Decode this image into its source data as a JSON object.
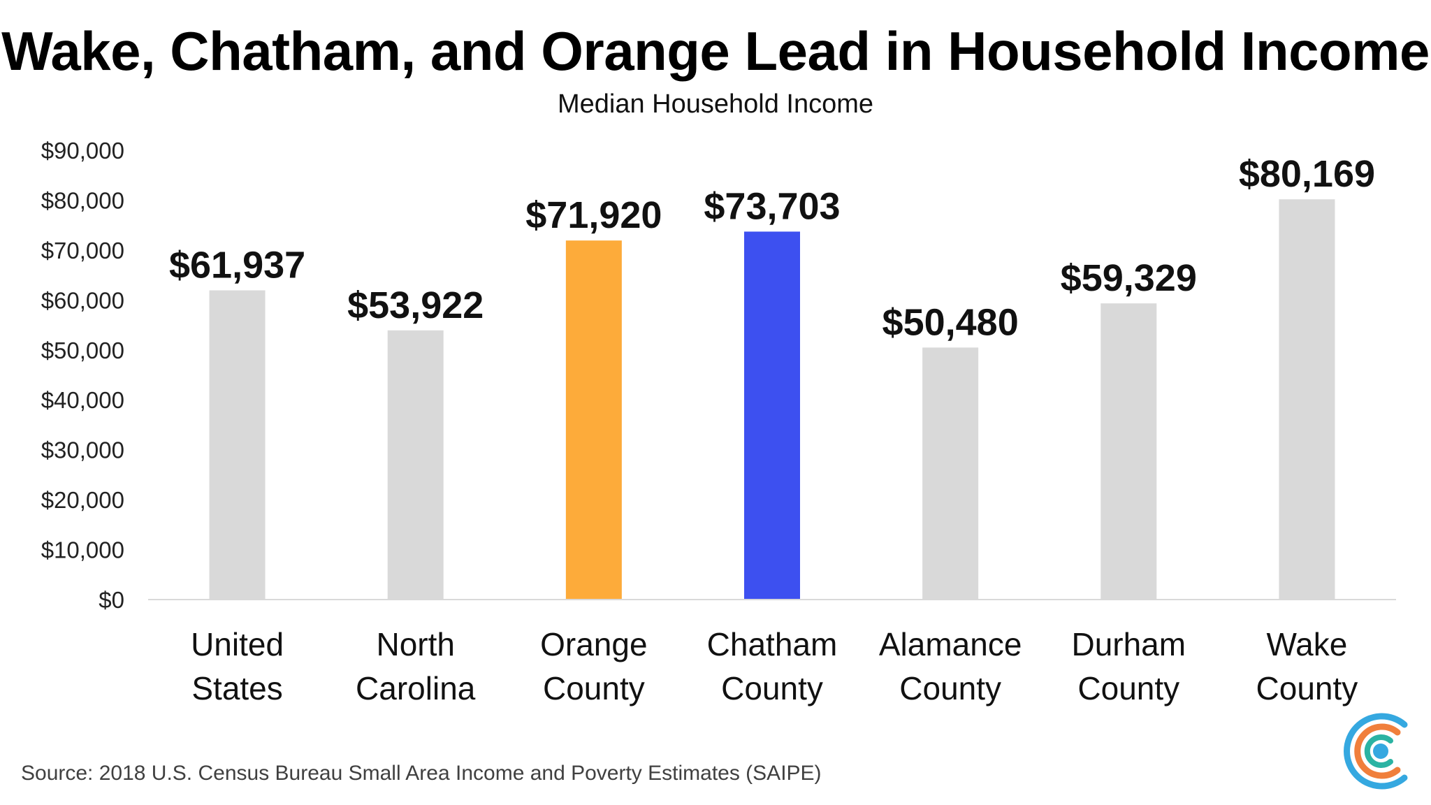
{
  "title": "Wake, Chatham, and Orange Lead in Household Income",
  "subtitle": "Median Household Income",
  "source": "Source: 2018 U.S. Census Bureau Small Area Income and Poverty Estimates (SAIPE)",
  "colors": {
    "default_bar": "#d9d9d9",
    "orange_bar": "#fdab3a",
    "blue_bar": "#3d50f0",
    "axis_line": "#d9d9d9",
    "logo_blue": "#35a8e0",
    "logo_orange": "#f07f3c",
    "logo_teal": "#2bb3a3"
  },
  "logo": {
    "icon": "circular-c-logo-icon"
  },
  "chart_data": {
    "type": "bar",
    "title": "Wake, Chatham, and Orange Lead in Household Income",
    "subtitle": "Median Household Income",
    "xlabel": "",
    "ylabel": "",
    "ylim": [
      0,
      90000
    ],
    "y_ticks": [
      0,
      10000,
      20000,
      30000,
      40000,
      50000,
      60000,
      70000,
      80000,
      90000
    ],
    "y_tick_labels": [
      "$0",
      "$10,000",
      "$20,000",
      "$30,000",
      "$40,000",
      "$50,000",
      "$60,000",
      "$70,000",
      "$80,000",
      "$90,000"
    ],
    "grid": false,
    "legend": "none",
    "categories": [
      [
        "United",
        "States"
      ],
      [
        "North",
        "Carolina"
      ],
      [
        "Orange",
        "County"
      ],
      [
        "Chatham",
        "County"
      ],
      [
        "Alamance",
        "County"
      ],
      [
        "Durham",
        "County"
      ],
      [
        "Wake",
        "County"
      ]
    ],
    "values": [
      61937,
      53922,
      71920,
      73703,
      50480,
      59329,
      80169
    ],
    "data_labels": [
      "$61,937",
      "$53,922",
      "$71,920",
      "$73,703",
      "$50,480",
      "$59,329",
      "$80,169"
    ],
    "bar_colors": [
      "#d9d9d9",
      "#d9d9d9",
      "#fdab3a",
      "#3d50f0",
      "#d9d9d9",
      "#d9d9d9",
      "#d9d9d9"
    ]
  }
}
